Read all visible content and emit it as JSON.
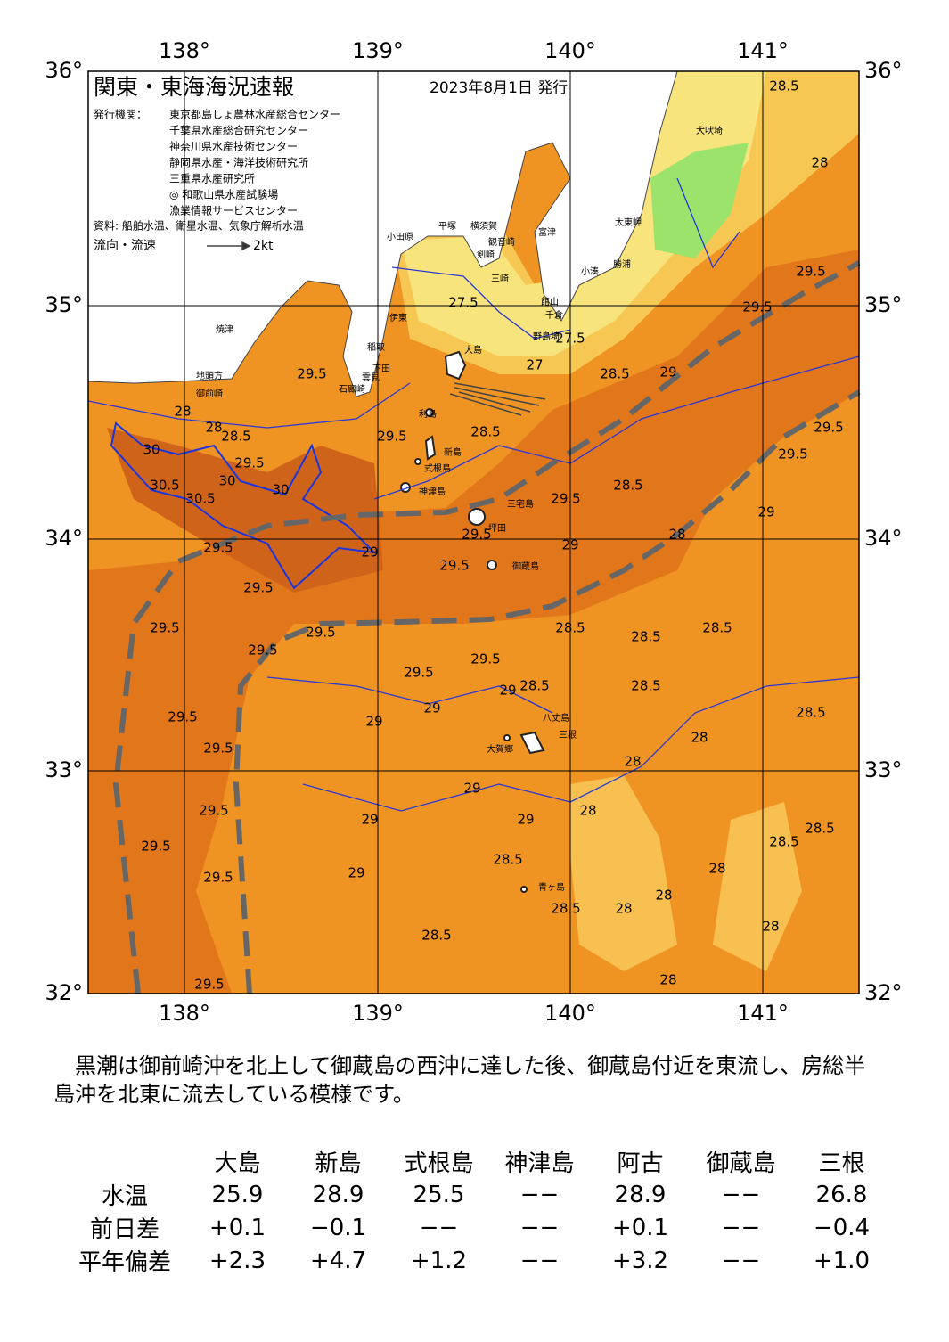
{
  "header": {
    "title": "関東・東海海況速報",
    "date": "2023年8月1日 発行",
    "agencies_label": "発行機関：",
    "agencies": [
      "東京都島しょ農林水産総合センター",
      "千葉県水産総合研究センター",
      "神奈川県水産技術センター",
      "静岡県水産・海洋技術研究所",
      "三重県水産研究所",
      "◎ 和歌山県水産試験場",
      "漁業情報サービスセンター"
    ],
    "sources": "資料: 船舶水温、衛星水温、気象庁解析水温",
    "legend_label": "流向・流速",
    "legend_speed": "2kt"
  },
  "map": {
    "lon_labels": [
      "138°",
      "139°",
      "140°",
      "141°"
    ],
    "lat_labels": [
      "36°",
      "35°",
      "34°",
      "33°",
      "32°"
    ],
    "place_names": [
      "犬吠埼",
      "太東岬",
      "勝浦",
      "小湊",
      "館山",
      "千倉",
      "野島埼",
      "富津",
      "横須賀",
      "観音崎",
      "剣崎",
      "三崎",
      "平塚",
      "小田原",
      "伊東",
      "稲取",
      "下田",
      "雲見",
      "石廊崎",
      "地頭方",
      "御前崎",
      "焼津",
      "大島",
      "利島",
      "新島",
      "式根島",
      "神津島",
      "三宅島",
      "坪田",
      "御蔵島",
      "八丈島",
      "三根",
      "大賀郷",
      "青ヶ島"
    ],
    "contour_labels": [
      28.5,
      28,
      27.5,
      27,
      27.5,
      28.5,
      29,
      29.5,
      29.5,
      28.5,
      29.5,
      29.5,
      28,
      28,
      28.5,
      29.5,
      30,
      30.5,
      30.5,
      30,
      30,
      29.5,
      29,
      29.5,
      29.5,
      29,
      29.5,
      28.5,
      28,
      29,
      29.5,
      29.5,
      29.5,
      29.5,
      28.5,
      28.5,
      28.5,
      29.5,
      29.5,
      29.5,
      29.5,
      29,
      28.5,
      28.5,
      28.5,
      28,
      29,
      29,
      29.5,
      29.5,
      28,
      29,
      29,
      29,
      28,
      29.5,
      29.5,
      29.5,
      28.5,
      29,
      28.5,
      28.5,
      28,
      28,
      28,
      28.5,
      28.5,
      28,
      28,
      29.5
    ]
  },
  "description": "黒潮は御前崎沖を北上して御蔵島の西沖に達した後、御蔵島付近を東流し、房総半島沖を北東に流去している模様です。",
  "table": {
    "columns": [
      "大島",
      "新島",
      "式根島",
      "神津島",
      "阿古",
      "御蔵島",
      "三根"
    ],
    "rows": [
      {
        "label": "水温",
        "values": [
          "25.9",
          "28.9",
          "25.5",
          "−−",
          "28.9",
          "−−",
          "26.8"
        ]
      },
      {
        "label": "前日差",
        "values": [
          "+0.1",
          "−0.1",
          "−−",
          "−−",
          "+0.1",
          "−−",
          "−0.4"
        ]
      },
      {
        "label": "平年偏差",
        "values": [
          "+2.3",
          "+4.7",
          "+1.2",
          "−−",
          "+3.2",
          "−−",
          "+1.0"
        ]
      }
    ]
  }
}
